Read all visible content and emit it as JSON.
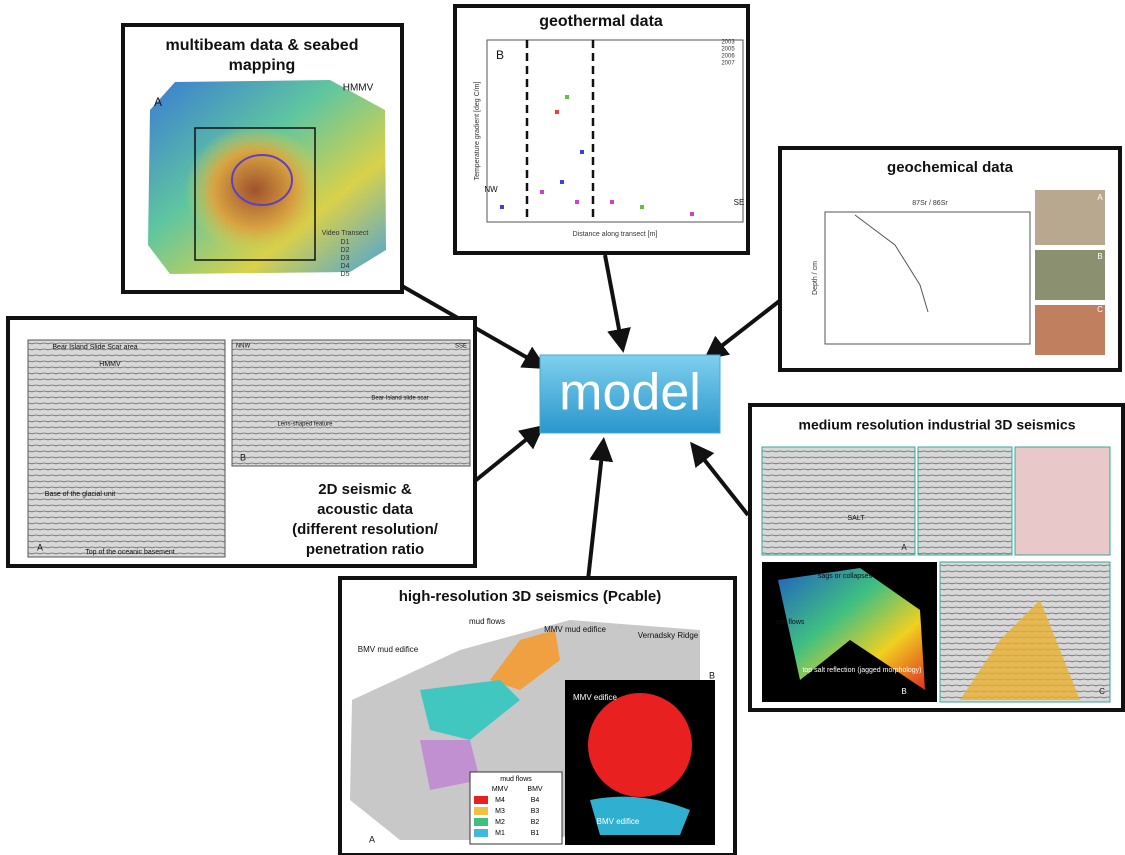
{
  "center": {
    "label": "model"
  },
  "panels": [
    {
      "title_lines": [
        "multibeam data & seabed",
        "mapping"
      ],
      "labels": [
        "HMMV",
        "A",
        "Video Transect",
        "D1",
        "D2",
        "D3",
        "D4",
        "D5"
      ]
    },
    {
      "title_lines": [
        "geothermal data"
      ],
      "labels": [
        "B",
        "NW",
        "SE",
        "Distance along transect [m]",
        "Temperature gradient [deg C/m]",
        "2003",
        "2005",
        "2006",
        "2007"
      ]
    },
    {
      "title_lines": [
        "geochemical data"
      ],
      "labels": [
        "87Sr / 86Sr",
        "Depth / cm",
        "A",
        "B",
        "C"
      ]
    },
    {
      "title_lines": [
        "2D seismic &",
        "acoustic data",
        "(different resolution/",
        "penetration ratio"
      ],
      "labels": [
        "Bear Island Slide Scar area",
        "HMMV",
        "NNW",
        "SSE",
        "A",
        "B",
        "Base of the glacial unit",
        "Top of the oceanic basement",
        "Bear Island slide scar",
        "Lens-shaped feature"
      ]
    },
    {
      "title_lines": [
        "medium resolution industrial 3D seismics"
      ],
      "labels": [
        "SALT",
        "A",
        "B",
        "C",
        "salt flows",
        "sags or collapses",
        "top salt reflection (jagged morphology)"
      ]
    },
    {
      "title_lines": [
        "high-resolution 3D seismics (Pcable)"
      ],
      "labels": [
        "mud flows",
        "MMV mud edifice",
        "BMV mud edifice",
        "Vernadsky Ridge",
        "MMV edifice",
        "BMV edifice",
        "A",
        "B"
      ],
      "legend": {
        "title": "mud flows",
        "columns": [
          "MMV",
          "BMV"
        ],
        "rows": [
          [
            "M4",
            "B4"
          ],
          [
            "M3",
            "B3"
          ],
          [
            "M2",
            "B2"
          ],
          [
            "M1",
            "B1"
          ]
        ]
      }
    }
  ]
}
